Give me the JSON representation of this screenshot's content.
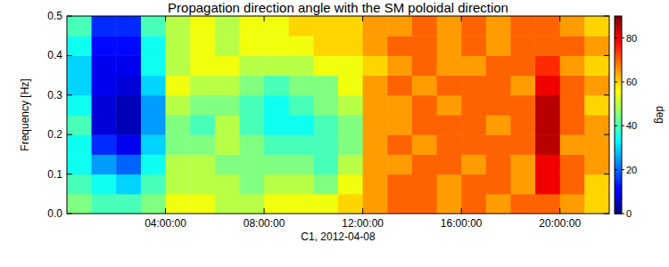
{
  "chart_data": {
    "type": "heatmap",
    "title": "Propagation direction angle with the SM poloidal direction",
    "x_label": "C1, 2012-04-08",
    "y_label": "Frequency [Hz]",
    "xlim": [
      0,
      22
    ],
    "xticks": [
      {
        "value": 4,
        "label": "04:00:00"
      },
      {
        "value": 8,
        "label": "08:00:00"
      },
      {
        "value": 12,
        "label": "12:00:00"
      },
      {
        "value": 16,
        "label": "16:00:00"
      },
      {
        "value": 20,
        "label": "20:00:00"
      }
    ],
    "ylim": [
      0,
      0.5
    ],
    "yticks": [
      {
        "value": 0,
        "label": "0.0"
      },
      0.1,
      0.2,
      0.3,
      0.4,
      0.5
    ],
    "x": [
      0.5,
      1.5,
      2.5,
      3.5,
      4.5,
      5.5,
      6.5,
      7.5,
      8.5,
      9.5,
      10.5,
      11.5,
      12.5,
      13.5,
      14.5,
      15.5,
      16.5,
      17.5,
      18.5,
      19.5,
      20.5,
      21.5
    ],
    "y": [
      0.025,
      0.075,
      0.125,
      0.175,
      0.225,
      0.275,
      0.325,
      0.375,
      0.425,
      0.475
    ],
    "values": [
      [
        45,
        40,
        35,
        35,
        40,
        35,
        30,
        30,
        35,
        40
      ],
      [
        40,
        35,
        25,
        15,
        8,
        8,
        10,
        10,
        12,
        15
      ],
      [
        40,
        30,
        20,
        10,
        5,
        5,
        8,
        10,
        12,
        15
      ],
      [
        45,
        40,
        35,
        30,
        25,
        25,
        30,
        35,
        35,
        40
      ],
      [
        55,
        50,
        50,
        45,
        45,
        50,
        55,
        50,
        50,
        50
      ],
      [
        55,
        50,
        50,
        45,
        40,
        45,
        50,
        55,
        55,
        55
      ],
      [
        50,
        50,
        45,
        50,
        50,
        45,
        50,
        55,
        50,
        50
      ],
      [
        50,
        45,
        45,
        45,
        40,
        40,
        45,
        50,
        55,
        55
      ],
      [
        55,
        50,
        45,
        40,
        35,
        35,
        40,
        50,
        55,
        55
      ],
      [
        55,
        50,
        45,
        40,
        35,
        40,
        45,
        50,
        55,
        60
      ],
      [
        55,
        45,
        40,
        40,
        40,
        45,
        45,
        55,
        60,
        60
      ],
      [
        60,
        55,
        50,
        45,
        45,
        50,
        55,
        55,
        60,
        60
      ],
      [
        65,
        65,
        65,
        65,
        65,
        65,
        65,
        60,
        65,
        65
      ],
      [
        70,
        70,
        65,
        70,
        65,
        65,
        70,
        65,
        70,
        65
      ],
      [
        70,
        70,
        70,
        65,
        70,
        70,
        65,
        70,
        70,
        70
      ],
      [
        65,
        65,
        70,
        70,
        70,
        65,
        70,
        65,
        65,
        65
      ],
      [
        70,
        70,
        65,
        70,
        70,
        70,
        70,
        65,
        70,
        70
      ],
      [
        65,
        70,
        70,
        70,
        65,
        70,
        70,
        70,
        65,
        65
      ],
      [
        70,
        65,
        65,
        70,
        70,
        70,
        65,
        70,
        70,
        70
      ],
      [
        70,
        80,
        80,
        85,
        85,
        85,
        80,
        75,
        70,
        70
      ],
      [
        65,
        70,
        70,
        65,
        70,
        70,
        70,
        65,
        70,
        65
      ],
      [
        60,
        60,
        65,
        65,
        65,
        60,
        65,
        60,
        65,
        60
      ]
    ],
    "color_range": [
      0,
      90
    ],
    "color_ticks": [
      0,
      20,
      40,
      60,
      80
    ],
    "color_label": "deg"
  }
}
